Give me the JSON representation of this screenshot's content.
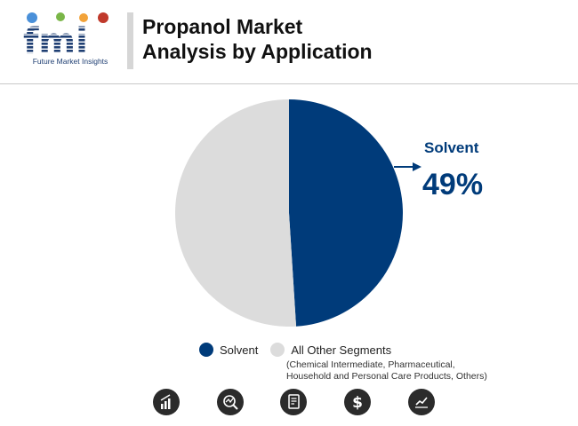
{
  "brand": {
    "logo_text": "fmi",
    "tagline": "Future Market Insights"
  },
  "title_lines": [
    "Propanol Market",
    "Analysis by Application"
  ],
  "colors": {
    "solvent": "#003b7a",
    "others": "#dcdcdc",
    "accent": "#003b7a"
  },
  "chart_data": {
    "type": "pie",
    "title": "Propanol Market Analysis by Application",
    "slices": [
      {
        "label": "Solvent",
        "value": 49
      },
      {
        "label": "All Other Segments",
        "value": 51
      }
    ],
    "unit": "%",
    "callout": {
      "label": "Solvent",
      "value_text": "49%"
    },
    "legend_position": "bottom"
  },
  "legend": {
    "items": [
      "Solvent",
      "All Other Segments"
    ],
    "note_lines": [
      "(Chemical Intermediate, Pharmaceutical,",
      "Household and Personal Care Products, Others)"
    ]
  },
  "footer_icons": [
    "bar-growth-icon",
    "magnifier-chart-icon",
    "report-document-icon",
    "dollar-icon",
    "trend-chart-icon"
  ]
}
